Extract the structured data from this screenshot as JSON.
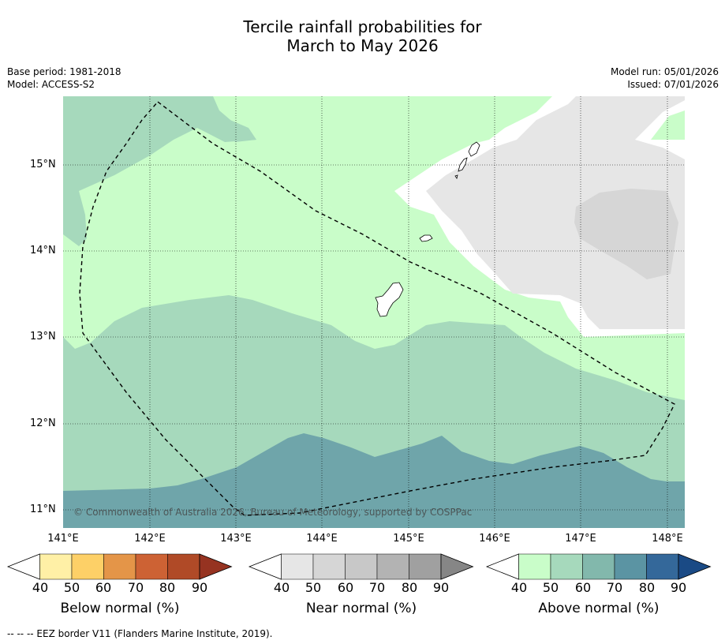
{
  "title": {
    "line1": "Tercile rainfall probabilities for",
    "line2": "March to May 2026"
  },
  "meta_left": {
    "base_period": "Base period: 1981-2018",
    "model": "Model: ACCESS-S2"
  },
  "meta_right": {
    "model_run": "Model run: 05/01/2026",
    "issued": "Issued: 07/01/2026"
  },
  "map": {
    "latitudes": [
      "15°N",
      "14°N",
      "13°N",
      "12°N",
      "11°N"
    ],
    "longitudes": [
      "141°E",
      "142°E",
      "143°E",
      "144°E",
      "145°E",
      "146°E",
      "147°E",
      "148°E"
    ],
    "copyright": "© Commonwealth of Australia 2026, Bureau of Meteorology, supported by COSPPac"
  },
  "colorbars": {
    "below": {
      "label": "Below normal (%)",
      "ticks": [
        "40",
        "50",
        "60",
        "70",
        "80",
        "90"
      ],
      "colors": [
        "#ffffff",
        "#fff0a6",
        "#fdd067",
        "#e49548",
        "#cd6234",
        "#b04a27",
        "#963321"
      ]
    },
    "near": {
      "label": "Near normal (%)",
      "ticks": [
        "40",
        "50",
        "60",
        "70",
        "80",
        "90"
      ],
      "colors": [
        "#ffffff",
        "#e6e6e6",
        "#d6d6d6",
        "#c8c8c8",
        "#b3b3b3",
        "#a0a0a0",
        "#868686"
      ]
    },
    "above": {
      "label": "Above normal (%)",
      "ticks": [
        "40",
        "50",
        "60",
        "70",
        "80",
        "90"
      ],
      "colors": [
        "#ffffff",
        "#c9fdc9",
        "#a6d9bc",
        "#82b8ac",
        "#5b94a3",
        "#34689a",
        "#1a4a85"
      ]
    }
  },
  "footer": "--  --  -- EEZ border V11 (Flanders Marine Institute, 2019)."
}
